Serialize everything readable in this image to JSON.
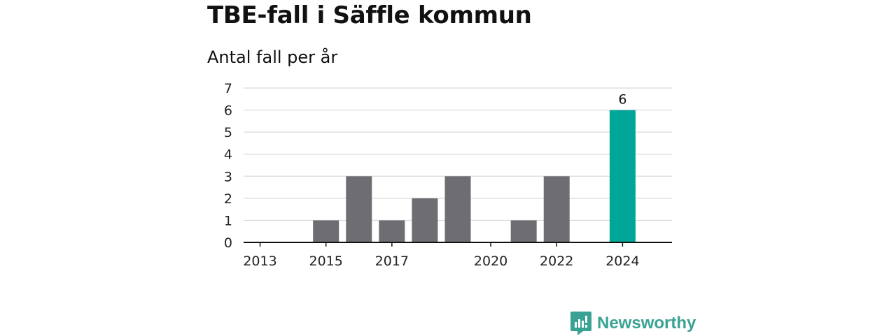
{
  "header": {
    "title": "TBE-fall i Säffle kommun",
    "subtitle": "Antal fall per år"
  },
  "brand": {
    "name": "Newsworthy",
    "color": "#3aa294"
  },
  "colors": {
    "bar": "#6e6d72",
    "highlight": "#00a698",
    "grid": "#d9d9d9",
    "axis": "#111111"
  },
  "chart_data": {
    "type": "bar",
    "title": "TBE-fall i Säffle kommun",
    "subtitle": "Antal fall per år",
    "xlabel": "",
    "ylabel": "",
    "categories": [
      2013,
      2014,
      2015,
      2016,
      2017,
      2018,
      2019,
      2020,
      2021,
      2022,
      2023,
      2024
    ],
    "values": [
      0,
      0,
      1,
      3,
      1,
      2,
      3,
      0,
      1,
      3,
      0,
      6
    ],
    "x_tick_labels": [
      "2013",
      "2015",
      "2017",
      "2020",
      "2022",
      "2024"
    ],
    "ylim": [
      0,
      7
    ],
    "y_ticks": [
      0,
      1,
      2,
      3,
      4,
      5,
      6,
      7
    ],
    "highlight_category": 2024,
    "data_labels": [
      {
        "category": 2024,
        "text": "6"
      }
    ],
    "grid": true,
    "legend": "none"
  }
}
